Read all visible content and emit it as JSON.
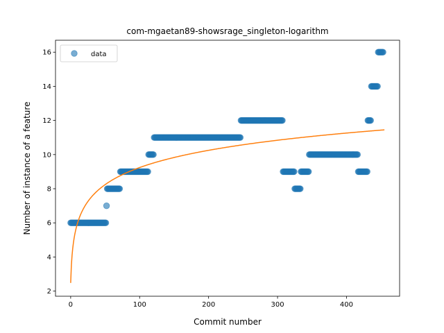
{
  "chart_data": {
    "type": "scatter",
    "title": "com-mgaetan89-showsrage_singleton-logarithm",
    "xlabel": "Commit number",
    "ylabel": "Number of instance of a feature",
    "xlim": [
      -22,
      477
    ],
    "ylim": [
      1.7,
      16.7
    ],
    "xticks": [
      0,
      100,
      200,
      300,
      400
    ],
    "yticks": [
      2,
      4,
      6,
      8,
      10,
      12,
      14,
      16
    ],
    "legend": {
      "placement": "top-left",
      "entries": [
        "data"
      ]
    },
    "grid": false,
    "colors": {
      "data": "#1f77b4",
      "fit": "#ff7f0e"
    },
    "series": [
      {
        "name": "data",
        "kind": "scatter-segments",
        "segments": [
          {
            "x_start": 0,
            "x_end": 51,
            "y": 6
          },
          {
            "x_start": 52,
            "x_end": 52,
            "y": 7
          },
          {
            "x_start": 53,
            "x_end": 71,
            "y": 8
          },
          {
            "x_start": 72,
            "x_end": 112,
            "y": 9
          },
          {
            "x_start": 113,
            "x_end": 120,
            "y": 10
          },
          {
            "x_start": 121,
            "x_end": 246,
            "y": 11
          },
          {
            "x_start": 247,
            "x_end": 307,
            "y": 12
          },
          {
            "x_start": 308,
            "x_end": 324,
            "y": 9
          },
          {
            "x_start": 325,
            "x_end": 333,
            "y": 8
          },
          {
            "x_start": 334,
            "x_end": 345,
            "y": 9
          },
          {
            "x_start": 346,
            "x_end": 416,
            "y": 10
          },
          {
            "x_start": 417,
            "x_end": 430,
            "y": 9
          },
          {
            "x_start": 431,
            "x_end": 435,
            "y": 12
          },
          {
            "x_start": 436,
            "x_end": 445,
            "y": 14
          },
          {
            "x_start": 446,
            "x_end": 453,
            "y": 16
          }
        ]
      },
      {
        "name": "",
        "kind": "line",
        "function": "logarithmic",
        "coef_a": 1.465,
        "coef_b": 2.48,
        "x_range": [
          0,
          455
        ]
      }
    ]
  }
}
